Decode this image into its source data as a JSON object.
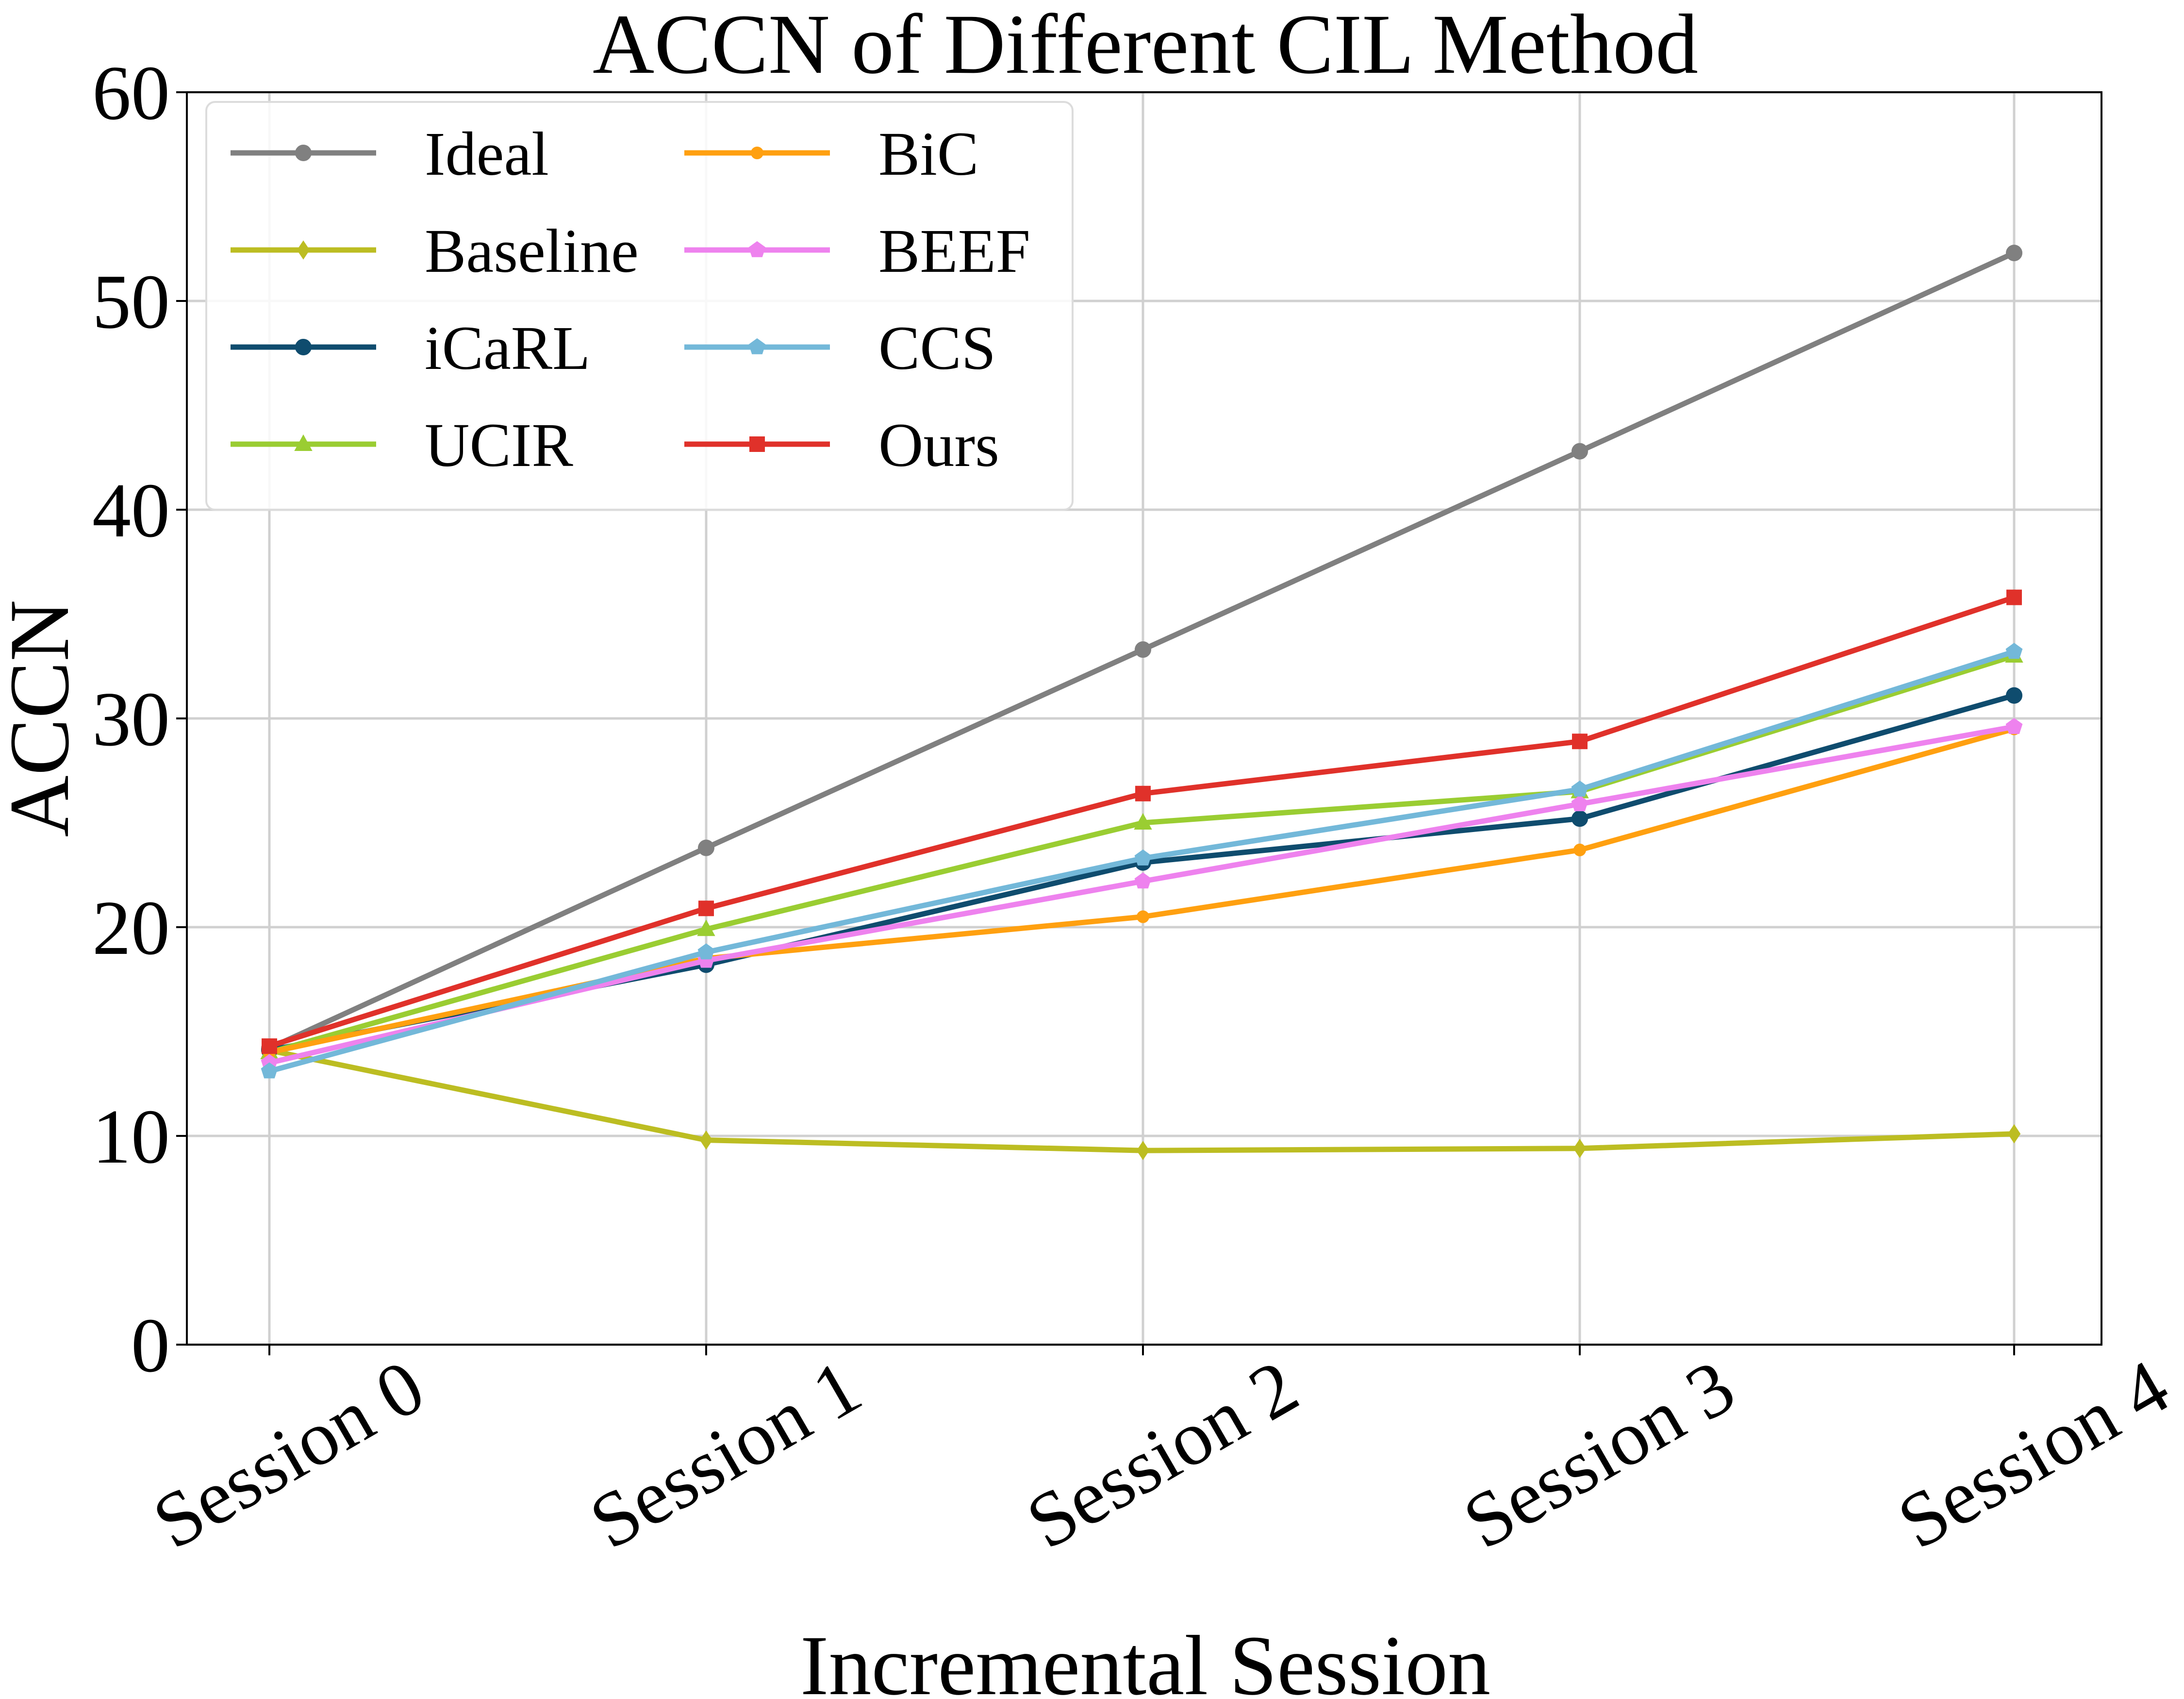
{
  "chart_data": {
    "type": "line",
    "title": "ACCN of Different CIL Method",
    "xlabel": "Incremental Session",
    "ylabel": "ACCN",
    "categories": [
      "Session 0",
      "Session 1",
      "Session 2",
      "Session 3",
      "Session 4"
    ],
    "ylim": [
      0,
      60
    ],
    "yticks": [
      0,
      10,
      20,
      30,
      40,
      50,
      60
    ],
    "grid": true,
    "legend": {
      "position": "top-left",
      "columns": 2
    },
    "series": [
      {
        "name": "Ideal",
        "color": "#808080",
        "marker": "circle",
        "values": [
          14.2,
          23.8,
          33.3,
          42.8,
          52.3
        ]
      },
      {
        "name": "Baseline",
        "color": "#bcbd22",
        "marker": "diamond",
        "values": [
          14.1,
          9.8,
          9.3,
          9.4,
          10.1
        ]
      },
      {
        "name": "iCaRL",
        "color": "#0f4c6e",
        "marker": "circle",
        "values": [
          14.1,
          18.2,
          23.1,
          25.2,
          31.1
        ]
      },
      {
        "name": "UCIR",
        "color": "#9acd32",
        "marker": "triangle",
        "values": [
          14.0,
          19.9,
          25.0,
          26.5,
          33.0
        ]
      },
      {
        "name": "BiC",
        "color": "#ffa010",
        "marker": "circle-small",
        "values": [
          14.0,
          18.5,
          20.5,
          23.7,
          29.5
        ]
      },
      {
        "name": "BEEF",
        "color": "#ee82ee",
        "marker": "pentagon",
        "values": [
          13.5,
          18.4,
          22.2,
          25.9,
          29.6
        ]
      },
      {
        "name": "CCS",
        "color": "#73b8d9",
        "marker": "pentagon",
        "values": [
          13.1,
          18.8,
          23.3,
          26.6,
          33.2
        ]
      },
      {
        "name": "Ours",
        "color": "#e0312a",
        "marker": "square",
        "values": [
          14.3,
          20.9,
          26.4,
          28.9,
          35.8
        ]
      }
    ]
  }
}
